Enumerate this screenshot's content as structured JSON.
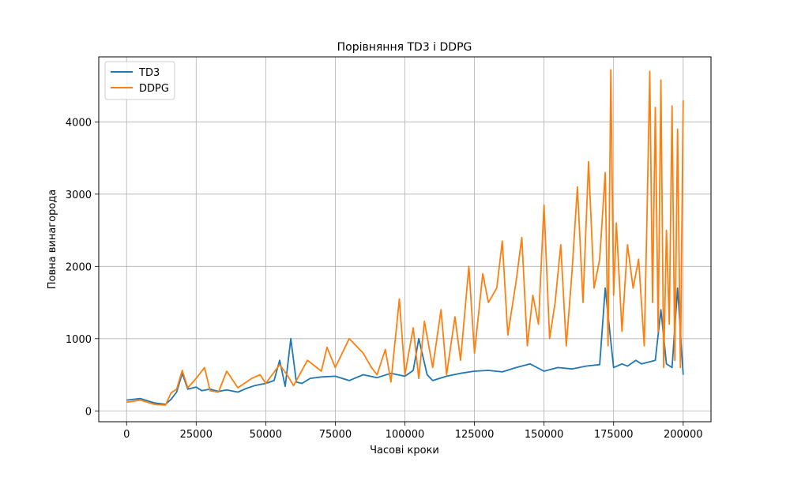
{
  "chart_data": {
    "type": "line",
    "title": "Порівняння TD3 і DDPG",
    "xlabel": "Часові кроки",
    "ylabel": "Повна винагорода",
    "xlim": [
      -10000,
      210000
    ],
    "ylim": [
      -150,
      4900
    ],
    "xticks": [
      0,
      25000,
      50000,
      75000,
      100000,
      125000,
      150000,
      175000,
      200000
    ],
    "yticks": [
      0,
      1000,
      2000,
      3000,
      4000
    ],
    "grid": true,
    "legend_position": "top-left",
    "series": [
      {
        "name": "TD3",
        "color": "#1f77b4",
        "x": [
          0,
          5000,
          10000,
          14000,
          16000,
          18000,
          20000,
          22000,
          25000,
          27000,
          30000,
          33000,
          36000,
          40000,
          43000,
          46000,
          50000,
          53000,
          55000,
          57000,
          59000,
          61000,
          63000,
          66000,
          70000,
          75000,
          80000,
          85000,
          90000,
          95000,
          100000,
          103000,
          105000,
          108000,
          110000,
          115000,
          120000,
          125000,
          130000,
          135000,
          140000,
          145000,
          150000,
          155000,
          160000,
          165000,
          170000,
          172000,
          175000,
          178000,
          180000,
          183000,
          185000,
          188000,
          190000,
          192000,
          194000,
          196000,
          198000,
          200000
        ],
        "y": [
          150,
          170,
          110,
          90,
          160,
          260,
          520,
          300,
          330,
          280,
          300,
          270,
          290,
          260,
          310,
          350,
          380,
          420,
          700,
          340,
          1000,
          400,
          380,
          450,
          470,
          480,
          420,
          500,
          460,
          520,
          480,
          560,
          1000,
          500,
          420,
          480,
          520,
          550,
          560,
          540,
          600,
          650,
          550,
          600,
          580,
          620,
          640,
          1700,
          600,
          650,
          620,
          700,
          650,
          680,
          700,
          1400,
          650,
          600,
          1700,
          500
        ]
      },
      {
        "name": "DDPG",
        "color": "#ff7f0e",
        "x": [
          0,
          5000,
          10000,
          14000,
          16000,
          18000,
          20000,
          22000,
          25000,
          28000,
          30000,
          33000,
          36000,
          40000,
          45000,
          48000,
          50000,
          55000,
          58000,
          60000,
          65000,
          70000,
          72000,
          75000,
          80000,
          85000,
          88000,
          90000,
          93000,
          95000,
          98000,
          100000,
          103000,
          105000,
          107000,
          110000,
          113000,
          115000,
          118000,
          120000,
          123000,
          125000,
          128000,
          130000,
          133000,
          135000,
          137000,
          140000,
          142000,
          144000,
          146000,
          148000,
          150000,
          152000,
          154000,
          156000,
          158000,
          160000,
          162000,
          164000,
          166000,
          168000,
          170000,
          172000,
          173000,
          174000,
          175000,
          176000,
          178000,
          180000,
          182000,
          184000,
          186000,
          187000,
          188000,
          189000,
          190000,
          191000,
          192000,
          193000,
          194000,
          195000,
          196000,
          197000,
          198000,
          199000,
          200000
        ],
        "y": [
          120,
          150,
          90,
          80,
          250,
          300,
          560,
          320,
          450,
          600,
          280,
          260,
          550,
          320,
          450,
          500,
          380,
          640,
          480,
          350,
          700,
          550,
          880,
          600,
          1000,
          800,
          600,
          500,
          850,
          400,
          1550,
          500,
          1150,
          450,
          1240,
          600,
          1400,
          500,
          1300,
          700,
          2000,
          800,
          1900,
          1500,
          1700,
          2350,
          1050,
          1800,
          2400,
          900,
          1600,
          1200,
          2850,
          1000,
          1500,
          2300,
          900,
          1900,
          3100,
          1500,
          3450,
          1700,
          2100,
          3300,
          900,
          4720,
          1600,
          2600,
          1100,
          2300,
          1700,
          2100,
          900,
          2700,
          4700,
          1500,
          4200,
          1100,
          4580,
          600,
          2500,
          1200,
          4220,
          700,
          3900,
          600,
          4300
        ]
      }
    ]
  }
}
